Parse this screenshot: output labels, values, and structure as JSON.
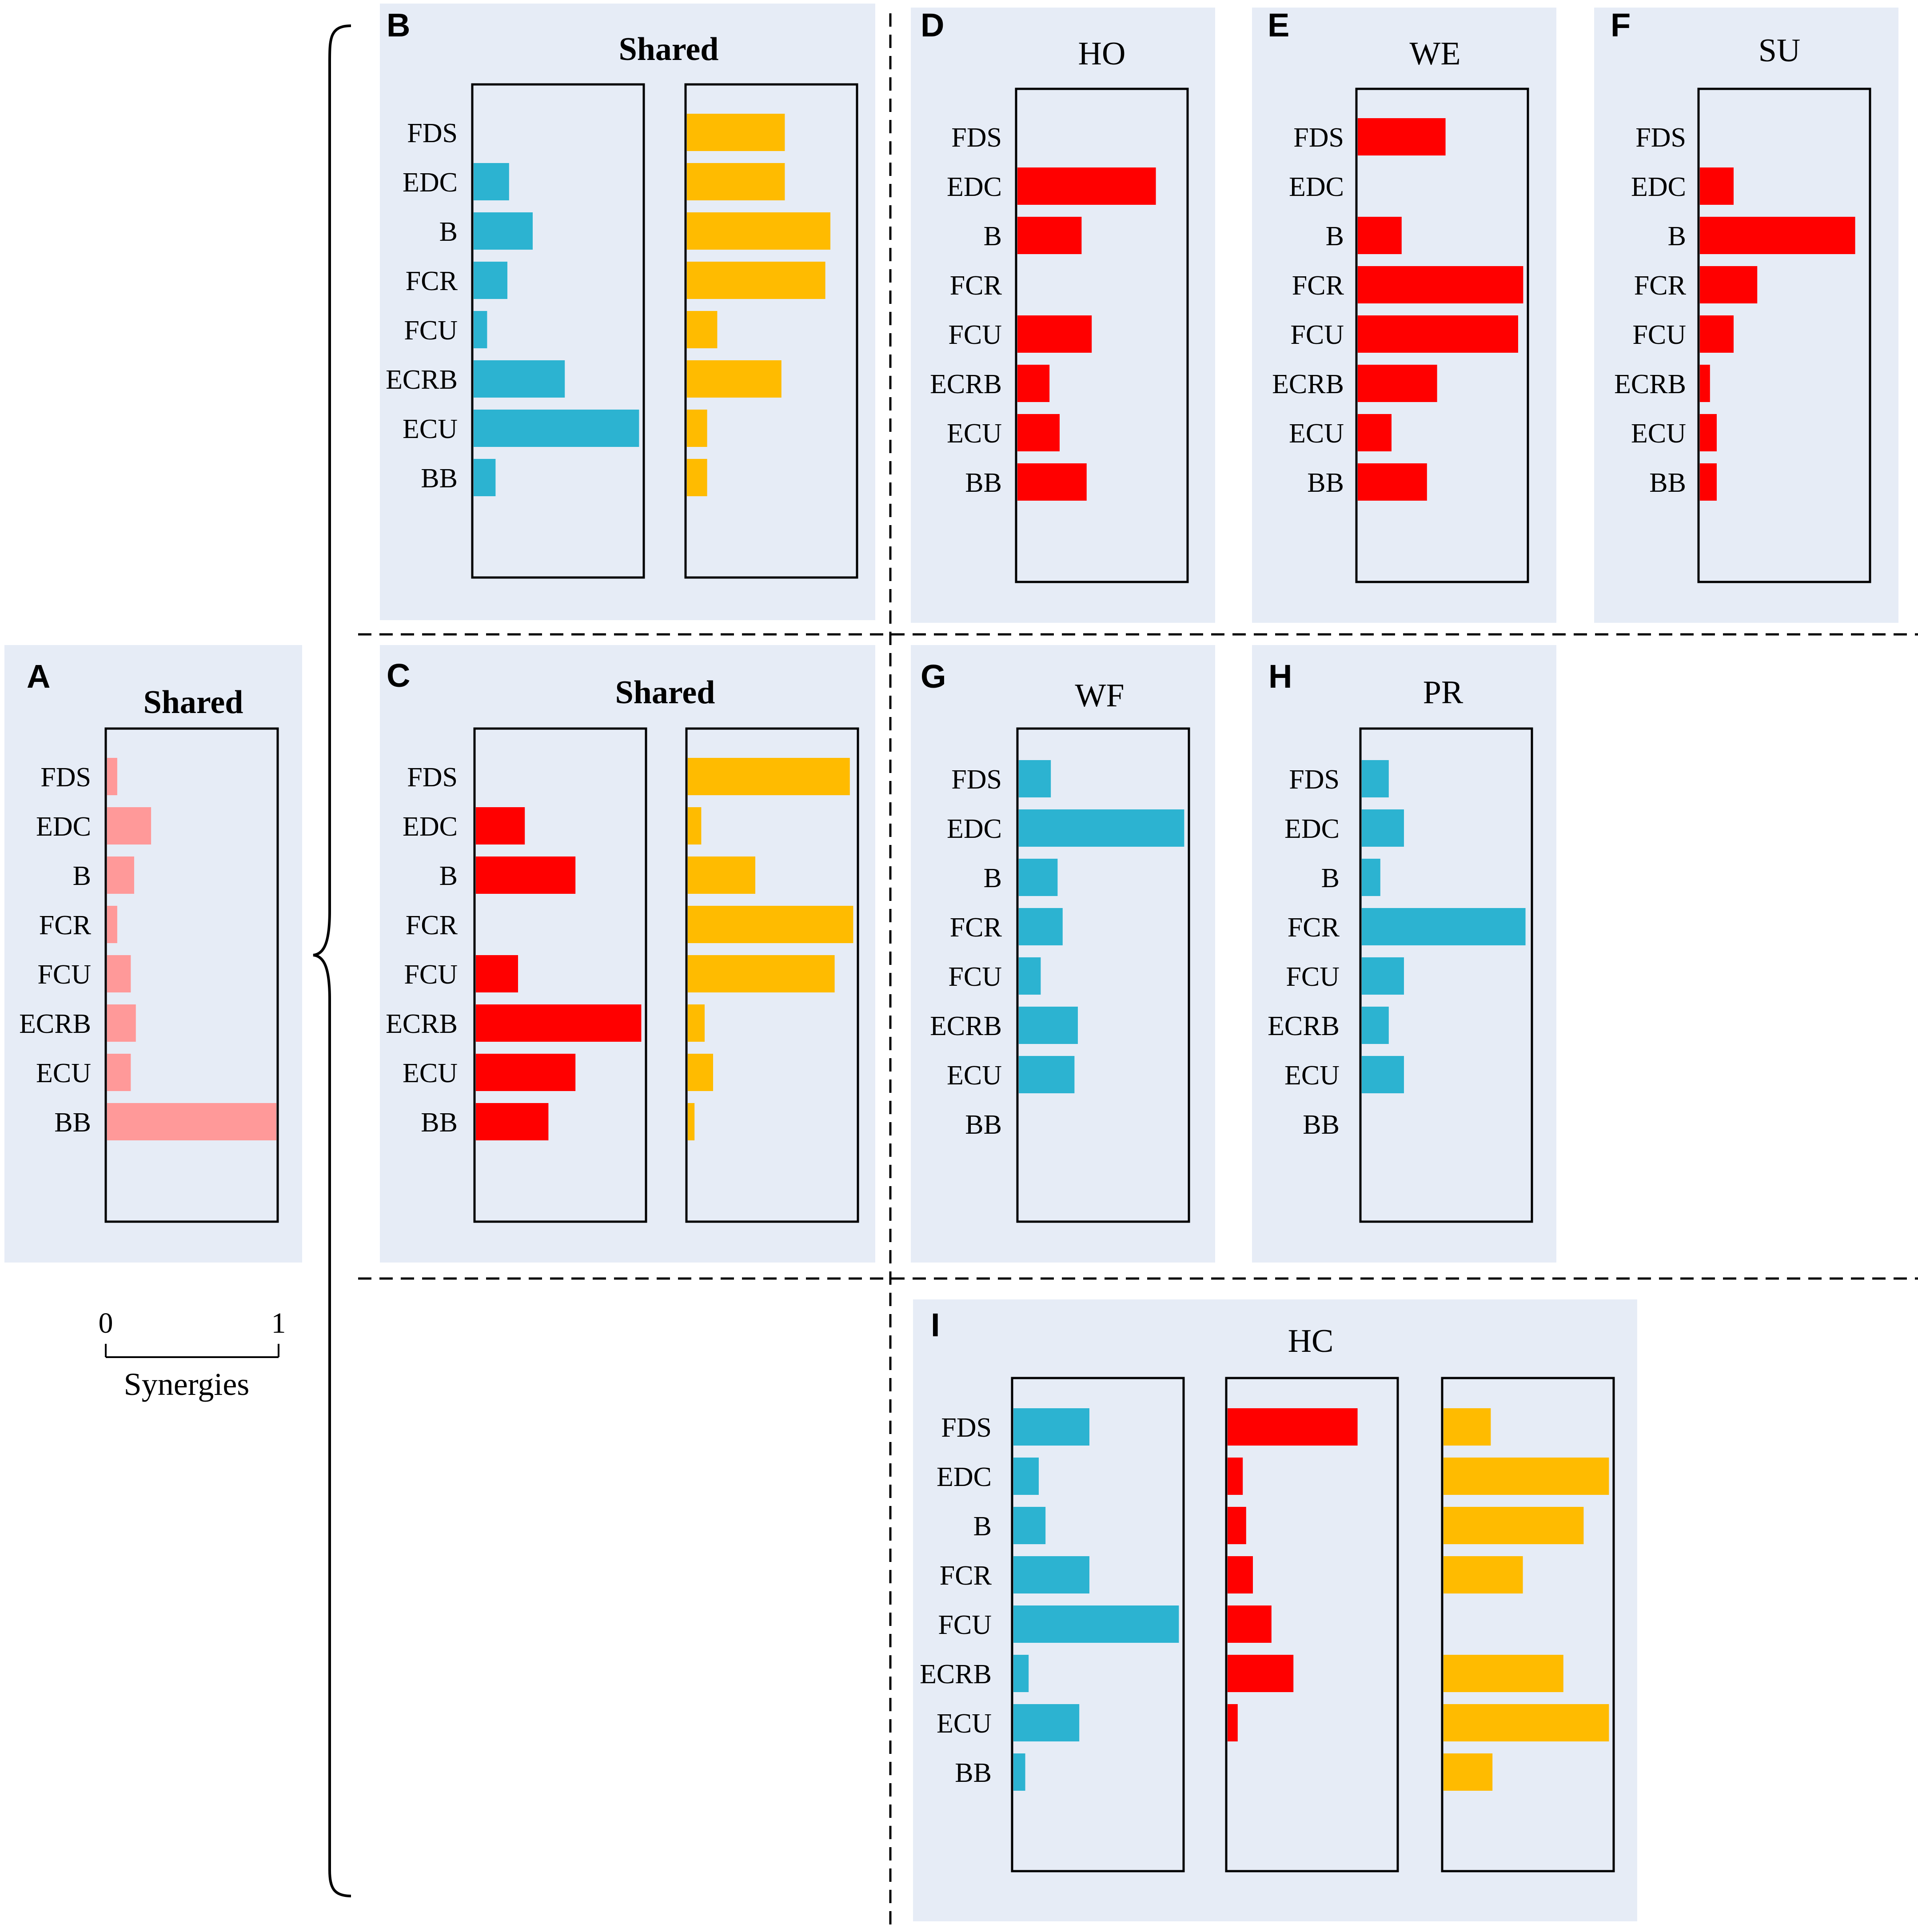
{
  "muscles": [
    "FDS",
    "EDC",
    "B",
    "FCR",
    "FCU",
    "ECRB",
    "ECU",
    "BB"
  ],
  "colors": {
    "panel_bg": "#e6ecf6",
    "pink": "#ff9999",
    "blue": "#2cb3d1",
    "red": "#ff0000",
    "gold": "#ffbb00",
    "frame": "#000000"
  },
  "scale": {
    "min_label": "0",
    "max_label": "1",
    "label": "Synergies"
  },
  "chart_data": [
    {
      "panel": "A",
      "type": "bar",
      "orientation": "horizontal",
      "title": "Shared",
      "categories": [
        "FDS",
        "EDC",
        "B",
        "FCR",
        "FCU",
        "ECRB",
        "ECU",
        "BB"
      ],
      "series": [
        {
          "name": "synergy 1",
          "color": "#ff9999",
          "values": [
            0.06,
            0.26,
            0.16,
            0.06,
            0.14,
            0.17,
            0.14,
            1.0
          ]
        }
      ],
      "xlim": [
        0,
        1
      ]
    },
    {
      "panel": "B",
      "type": "bar",
      "orientation": "horizontal",
      "title": "Shared",
      "categories": [
        "FDS",
        "EDC",
        "B",
        "FCR",
        "FCU",
        "ECRB",
        "ECU",
        "BB"
      ],
      "series": [
        {
          "name": "synergy 1",
          "color": "#2cb3d1",
          "values": [
            0.0,
            0.21,
            0.35,
            0.2,
            0.08,
            0.54,
            0.98,
            0.13
          ]
        },
        {
          "name": "synergy 2",
          "color": "#ffbb00",
          "values": [
            0.58,
            0.58,
            0.85,
            0.82,
            0.18,
            0.56,
            0.12,
            0.12
          ]
        }
      ],
      "xlim": [
        0,
        1
      ]
    },
    {
      "panel": "C",
      "type": "bar",
      "orientation": "horizontal",
      "title": "Shared",
      "categories": [
        "FDS",
        "EDC",
        "B",
        "FCR",
        "FCU",
        "ECRB",
        "ECU",
        "BB"
      ],
      "series": [
        {
          "name": "synergy 1",
          "color": "#ff0000",
          "values": [
            0.0,
            0.29,
            0.59,
            0.0,
            0.25,
            0.98,
            0.59,
            0.43
          ]
        },
        {
          "name": "synergy 2",
          "color": "#ffbb00",
          "values": [
            0.96,
            0.08,
            0.4,
            0.98,
            0.87,
            0.1,
            0.15,
            0.04
          ]
        }
      ],
      "xlim": [
        0,
        1
      ]
    },
    {
      "panel": "D",
      "type": "bar",
      "orientation": "horizontal",
      "title": "HO",
      "categories": [
        "FDS",
        "EDC",
        "B",
        "FCR",
        "FCU",
        "ECRB",
        "ECU",
        "BB"
      ],
      "series": [
        {
          "name": "synergy 1",
          "color": "#ff0000",
          "values": [
            0.0,
            0.82,
            0.38,
            0.0,
            0.44,
            0.19,
            0.25,
            0.41
          ]
        }
      ],
      "xlim": [
        0,
        1
      ]
    },
    {
      "panel": "E",
      "type": "bar",
      "orientation": "horizontal",
      "title": "WE",
      "categories": [
        "FDS",
        "EDC",
        "B",
        "FCR",
        "FCU",
        "ECRB",
        "ECU",
        "BB"
      ],
      "series": [
        {
          "name": "synergy 1",
          "color": "#ff0000",
          "values": [
            0.52,
            0.0,
            0.26,
            0.98,
            0.95,
            0.47,
            0.2,
            0.41
          ]
        }
      ],
      "xlim": [
        0,
        1
      ]
    },
    {
      "panel": "F",
      "type": "bar",
      "orientation": "horizontal",
      "title": "SU",
      "categories": [
        "FDS",
        "EDC",
        "B",
        "FCR",
        "FCU",
        "ECRB",
        "ECU",
        "BB"
      ],
      "series": [
        {
          "name": "synergy 1",
          "color": "#ff0000",
          "values": [
            0.0,
            0.2,
            0.92,
            0.34,
            0.2,
            0.06,
            0.1,
            0.1
          ]
        }
      ],
      "xlim": [
        0,
        1
      ]
    },
    {
      "panel": "G",
      "type": "bar",
      "orientation": "horizontal",
      "title": "WF",
      "categories": [
        "FDS",
        "EDC",
        "B",
        "FCR",
        "FCU",
        "ECRB",
        "ECU",
        "BB"
      ],
      "series": [
        {
          "name": "synergy 1",
          "color": "#2cb3d1",
          "values": [
            0.19,
            0.98,
            0.23,
            0.26,
            0.13,
            0.35,
            0.33,
            0.0
          ]
        }
      ],
      "xlim": [
        0,
        1
      ]
    },
    {
      "panel": "H",
      "type": "bar",
      "orientation": "horizontal",
      "title": "PR",
      "categories": [
        "FDS",
        "EDC",
        "B",
        "FCR",
        "FCU",
        "ECRB",
        "ECU",
        "BB"
      ],
      "series": [
        {
          "name": "synergy 1",
          "color": "#2cb3d1",
          "values": [
            0.16,
            0.25,
            0.11,
            0.97,
            0.25,
            0.16,
            0.25,
            0.0
          ]
        }
      ],
      "xlim": [
        0,
        1
      ]
    },
    {
      "panel": "I",
      "type": "bar",
      "orientation": "horizontal",
      "title": "HC",
      "categories": [
        "FDS",
        "EDC",
        "B",
        "FCR",
        "FCU",
        "ECRB",
        "ECU",
        "BB"
      ],
      "series": [
        {
          "name": "synergy 1",
          "color": "#2cb3d1",
          "values": [
            0.45,
            0.15,
            0.19,
            0.45,
            0.98,
            0.09,
            0.39,
            0.07
          ]
        },
        {
          "name": "synergy 2",
          "color": "#ff0000",
          "values": [
            0.77,
            0.09,
            0.11,
            0.15,
            0.26,
            0.39,
            0.06,
            0.0
          ]
        },
        {
          "name": "synergy 3",
          "color": "#ffbb00",
          "values": [
            0.28,
            0.98,
            0.83,
            0.47,
            0.0,
            0.71,
            0.98,
            0.29
          ]
        }
      ],
      "xlim": [
        0,
        1
      ]
    }
  ]
}
